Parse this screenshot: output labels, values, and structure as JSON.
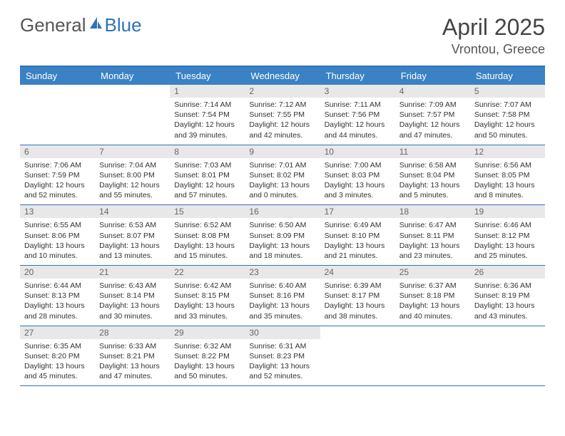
{
  "logo": {
    "text1": "General",
    "text2": "Blue"
  },
  "title": "April 2025",
  "location": "Vrontou, Greece",
  "colors": {
    "header_bg": "#3b82c4",
    "header_text": "#ffffff",
    "border": "#2f72b8",
    "daynum_bg": "#e8e8e8",
    "daynum_text": "#666666",
    "body_text": "#333333",
    "page_bg": "#ffffff",
    "logo_gray": "#555555",
    "logo_blue": "#2f72b8"
  },
  "dayNames": [
    "Sunday",
    "Monday",
    "Tuesday",
    "Wednesday",
    "Thursday",
    "Friday",
    "Saturday"
  ],
  "weeks": [
    [
      {
        "empty": true
      },
      {
        "empty": true
      },
      {
        "day": "1",
        "sunrise": "7:14 AM",
        "sunset": "7:54 PM",
        "daylight": "12 hours and 39 minutes."
      },
      {
        "day": "2",
        "sunrise": "7:12 AM",
        "sunset": "7:55 PM",
        "daylight": "12 hours and 42 minutes."
      },
      {
        "day": "3",
        "sunrise": "7:11 AM",
        "sunset": "7:56 PM",
        "daylight": "12 hours and 44 minutes."
      },
      {
        "day": "4",
        "sunrise": "7:09 AM",
        "sunset": "7:57 PM",
        "daylight": "12 hours and 47 minutes."
      },
      {
        "day": "5",
        "sunrise": "7:07 AM",
        "sunset": "7:58 PM",
        "daylight": "12 hours and 50 minutes."
      }
    ],
    [
      {
        "day": "6",
        "sunrise": "7:06 AM",
        "sunset": "7:59 PM",
        "daylight": "12 hours and 52 minutes."
      },
      {
        "day": "7",
        "sunrise": "7:04 AM",
        "sunset": "8:00 PM",
        "daylight": "12 hours and 55 minutes."
      },
      {
        "day": "8",
        "sunrise": "7:03 AM",
        "sunset": "8:01 PM",
        "daylight": "12 hours and 57 minutes."
      },
      {
        "day": "9",
        "sunrise": "7:01 AM",
        "sunset": "8:02 PM",
        "daylight": "13 hours and 0 minutes."
      },
      {
        "day": "10",
        "sunrise": "7:00 AM",
        "sunset": "8:03 PM",
        "daylight": "13 hours and 3 minutes."
      },
      {
        "day": "11",
        "sunrise": "6:58 AM",
        "sunset": "8:04 PM",
        "daylight": "13 hours and 5 minutes."
      },
      {
        "day": "12",
        "sunrise": "6:56 AM",
        "sunset": "8:05 PM",
        "daylight": "13 hours and 8 minutes."
      }
    ],
    [
      {
        "day": "13",
        "sunrise": "6:55 AM",
        "sunset": "8:06 PM",
        "daylight": "13 hours and 10 minutes."
      },
      {
        "day": "14",
        "sunrise": "6:53 AM",
        "sunset": "8:07 PM",
        "daylight": "13 hours and 13 minutes."
      },
      {
        "day": "15",
        "sunrise": "6:52 AM",
        "sunset": "8:08 PM",
        "daylight": "13 hours and 15 minutes."
      },
      {
        "day": "16",
        "sunrise": "6:50 AM",
        "sunset": "8:09 PM",
        "daylight": "13 hours and 18 minutes."
      },
      {
        "day": "17",
        "sunrise": "6:49 AM",
        "sunset": "8:10 PM",
        "daylight": "13 hours and 21 minutes."
      },
      {
        "day": "18",
        "sunrise": "6:47 AM",
        "sunset": "8:11 PM",
        "daylight": "13 hours and 23 minutes."
      },
      {
        "day": "19",
        "sunrise": "6:46 AM",
        "sunset": "8:12 PM",
        "daylight": "13 hours and 25 minutes."
      }
    ],
    [
      {
        "day": "20",
        "sunrise": "6:44 AM",
        "sunset": "8:13 PM",
        "daylight": "13 hours and 28 minutes."
      },
      {
        "day": "21",
        "sunrise": "6:43 AM",
        "sunset": "8:14 PM",
        "daylight": "13 hours and 30 minutes."
      },
      {
        "day": "22",
        "sunrise": "6:42 AM",
        "sunset": "8:15 PM",
        "daylight": "13 hours and 33 minutes."
      },
      {
        "day": "23",
        "sunrise": "6:40 AM",
        "sunset": "8:16 PM",
        "daylight": "13 hours and 35 minutes."
      },
      {
        "day": "24",
        "sunrise": "6:39 AM",
        "sunset": "8:17 PM",
        "daylight": "13 hours and 38 minutes."
      },
      {
        "day": "25",
        "sunrise": "6:37 AM",
        "sunset": "8:18 PM",
        "daylight": "13 hours and 40 minutes."
      },
      {
        "day": "26",
        "sunrise": "6:36 AM",
        "sunset": "8:19 PM",
        "daylight": "13 hours and 43 minutes."
      }
    ],
    [
      {
        "day": "27",
        "sunrise": "6:35 AM",
        "sunset": "8:20 PM",
        "daylight": "13 hours and 45 minutes."
      },
      {
        "day": "28",
        "sunrise": "6:33 AM",
        "sunset": "8:21 PM",
        "daylight": "13 hours and 47 minutes."
      },
      {
        "day": "29",
        "sunrise": "6:32 AM",
        "sunset": "8:22 PM",
        "daylight": "13 hours and 50 minutes."
      },
      {
        "day": "30",
        "sunrise": "6:31 AM",
        "sunset": "8:23 PM",
        "daylight": "13 hours and 52 minutes."
      },
      {
        "empty": true
      },
      {
        "empty": true
      },
      {
        "empty": true
      }
    ]
  ],
  "labels": {
    "sunrise": "Sunrise:",
    "sunset": "Sunset:",
    "daylight": "Daylight:"
  }
}
